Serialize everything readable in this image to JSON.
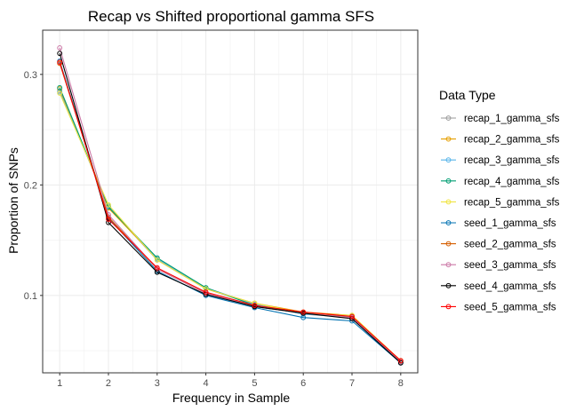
{
  "chart_data": {
    "type": "line",
    "title": "Recap vs Shifted proportional gamma SFS",
    "xlabel": "Frequency in Sample",
    "ylabel": "Proportion of SNPs",
    "x": [
      1,
      2,
      3,
      4,
      5,
      6,
      7,
      8
    ],
    "x_ticks": [
      "1",
      "2",
      "3",
      "4",
      "5",
      "6",
      "7",
      "8"
    ],
    "y_ticks": [
      "0.1",
      "0.2",
      "0.3"
    ],
    "ylim": [
      0.03,
      0.34
    ],
    "grid": true,
    "legend_placement": "right",
    "legend_title": "Data Type",
    "series": [
      {
        "name": "recap_1_gamma_sfs",
        "color": "#999999",
        "values": [
          0.285,
          0.18,
          0.132,
          0.106,
          0.092,
          0.083,
          0.08,
          0.04
        ]
      },
      {
        "name": "recap_2_gamma_sfs",
        "color": "#E69F00",
        "values": [
          0.287,
          0.179,
          0.133,
          0.106,
          0.093,
          0.085,
          0.082,
          0.041
        ]
      },
      {
        "name": "recap_3_gamma_sfs",
        "color": "#56B4E9",
        "values": [
          0.284,
          0.181,
          0.133,
          0.107,
          0.092,
          0.083,
          0.081,
          0.04
        ]
      },
      {
        "name": "recap_4_gamma_sfs",
        "color": "#009E73",
        "values": [
          0.288,
          0.18,
          0.134,
          0.107,
          0.091,
          0.084,
          0.081,
          0.04
        ]
      },
      {
        "name": "recap_5_gamma_sfs",
        "color": "#F0E442",
        "values": [
          0.283,
          0.182,
          0.132,
          0.106,
          0.093,
          0.084,
          0.082,
          0.041
        ]
      },
      {
        "name": "seed_1_gamma_sfs",
        "color": "#0072B2",
        "values": [
          0.312,
          0.17,
          0.122,
          0.1,
          0.089,
          0.08,
          0.077,
          0.039
        ]
      },
      {
        "name": "seed_2_gamma_sfs",
        "color": "#D55E00",
        "values": [
          0.31,
          0.171,
          0.124,
          0.102,
          0.09,
          0.084,
          0.08,
          0.04
        ]
      },
      {
        "name": "seed_3_gamma_sfs",
        "color": "#CC79A7",
        "values": [
          0.324,
          0.173,
          0.124,
          0.102,
          0.09,
          0.084,
          0.08,
          0.04
        ]
      },
      {
        "name": "seed_4_gamma_sfs",
        "color": "#000000",
        "values": [
          0.319,
          0.166,
          0.121,
          0.101,
          0.09,
          0.084,
          0.079,
          0.039
        ]
      },
      {
        "name": "seed_5_gamma_sfs",
        "color": "#FF0000",
        "values": [
          0.311,
          0.169,
          0.125,
          0.103,
          0.091,
          0.085,
          0.081,
          0.041
        ]
      }
    ]
  }
}
